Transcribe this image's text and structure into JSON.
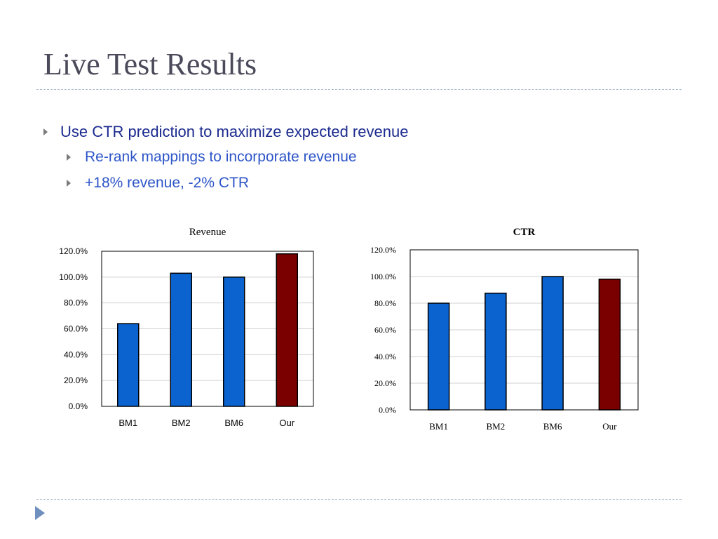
{
  "slide": {
    "title": "Live Test Results",
    "bullets": [
      {
        "text": "Use CTR prediction to maximize expected revenue",
        "level": 1
      },
      {
        "text": "Re-rank mappings to incorporate revenue",
        "level": 2
      },
      {
        "text": "+18% revenue, -2% CTR",
        "level": 2
      }
    ]
  },
  "colors": {
    "baseline_bar": "#0a63cf",
    "ours_bar": "#7a0000",
    "title_text": "#4a4a5a",
    "bullet_l1": "#1c2b8f",
    "bullet_l2": "#2d55c8"
  },
  "chart_data": [
    {
      "type": "bar",
      "title": "Revenue",
      "categories": [
        "BM1",
        "BM2",
        "BM6",
        "Our"
      ],
      "values": [
        64.0,
        103.0,
        100.0,
        118.0
      ],
      "ylim": [
        0,
        120
      ],
      "yticks": [
        "0.0%",
        "20.0%",
        "40.0%",
        "60.0%",
        "80.0%",
        "100.0%",
        "120.0%"
      ],
      "grid": true,
      "legend": "none"
    },
    {
      "type": "bar",
      "title": "CTR",
      "categories": [
        "BM1",
        "BM2",
        "BM6",
        "Our"
      ],
      "values": [
        80.0,
        87.5,
        100.0,
        98.0
      ],
      "ylim": [
        0,
        120
      ],
      "yticks": [
        "0.0%",
        "20.0%",
        "40.0%",
        "60.0%",
        "80.0%",
        "100.0%",
        "120.0%"
      ],
      "grid": true,
      "legend": "none"
    }
  ]
}
